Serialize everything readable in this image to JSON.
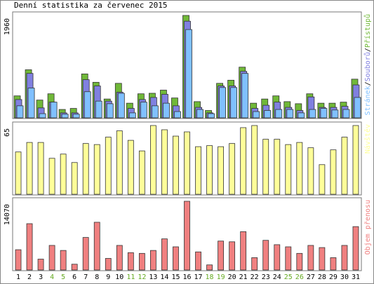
{
  "chart_data": [
    {
      "type": "bar",
      "title": "Denní statistika za červenec 2015",
      "ylim": [
        0,
        1960
      ],
      "yticks": [
        1960
      ],
      "legend_separator": "/",
      "series": [
        {
          "name": "Stránek",
          "color": "#80c0ff",
          "values": [
            230,
            570,
            80,
            300,
            70,
            70,
            500,
            320,
            270,
            470,
            95,
            300,
            230,
            280,
            120,
            1690,
            160,
            80,
            580,
            580,
            850,
            120,
            140,
            160,
            160,
            95,
            160,
            180,
            150,
            160,
            390
          ]
        },
        {
          "name": "Souborů",
          "color": "#8080e0",
          "values": [
            350,
            850,
            190,
            300,
            95,
            95,
            730,
            610,
            320,
            490,
            180,
            350,
            390,
            450,
            230,
            1850,
            200,
            95,
            610,
            610,
            890,
            180,
            240,
            300,
            200,
            140,
            400,
            200,
            200,
            220,
            630
          ]
        },
        {
          "name": "Přístupů",
          "color": "#70b838",
          "values": [
            420,
            920,
            340,
            460,
            160,
            180,
            840,
            680,
            360,
            660,
            280,
            460,
            470,
            530,
            380,
            1960,
            310,
            140,
            660,
            720,
            970,
            280,
            360,
            420,
            310,
            270,
            460,
            280,
            280,
            300,
            740
          ]
        }
      ]
    },
    {
      "type": "bar",
      "ylim": [
        0,
        65
      ],
      "yticks": [
        65
      ],
      "series": [
        {
          "name": "Návštěv",
          "color": "#ffff99",
          "values": [
            40,
            49,
            49,
            34,
            38,
            30,
            48,
            47,
            54,
            60,
            51,
            41,
            65,
            61,
            55,
            59,
            45,
            46,
            45,
            48,
            63,
            65,
            52,
            52,
            47,
            49,
            44,
            28,
            42,
            54,
            65
          ]
        }
      ]
    },
    {
      "type": "bar",
      "ylim": [
        0,
        14070
      ],
      "yticks": [
        14070
      ],
      "series": [
        {
          "name": "Objem přenosu",
          "color": "#f08080",
          "values": [
            4150,
            9480,
            2220,
            5030,
            4000,
            1180,
            6660,
            9770,
            2370,
            5030,
            3550,
            3400,
            4000,
            6370,
            4740,
            14070,
            3700,
            1040,
            5920,
            5770,
            7850,
            2520,
            6070,
            5180,
            4740,
            3400,
            5030,
            4590,
            2520,
            5030,
            8880
          ]
        }
      ],
      "categories": [
        "1",
        "2",
        "3",
        "4",
        "5",
        "6",
        "7",
        "8",
        "9",
        "10",
        "11",
        "12",
        "13",
        "14",
        "15",
        "16",
        "17",
        "18",
        "19",
        "20",
        "21",
        "22",
        "23",
        "24",
        "25",
        "26",
        "27",
        "28",
        "29",
        "30",
        "31"
      ],
      "category_colors": [
        "#000000",
        "#000000",
        "#000000",
        "#66aa22",
        "#66aa22",
        "#000000",
        "#000000",
        "#000000",
        "#000000",
        "#000000",
        "#66aa22",
        "#66aa22",
        "#000000",
        "#000000",
        "#000000",
        "#000000",
        "#000000",
        "#66aa22",
        "#66aa22",
        "#000000",
        "#000000",
        "#000000",
        "#000000",
        "#000000",
        "#66aa22",
        "#66aa22",
        "#000000",
        "#000000",
        "#000000",
        "#000000",
        "#000000"
      ]
    }
  ]
}
